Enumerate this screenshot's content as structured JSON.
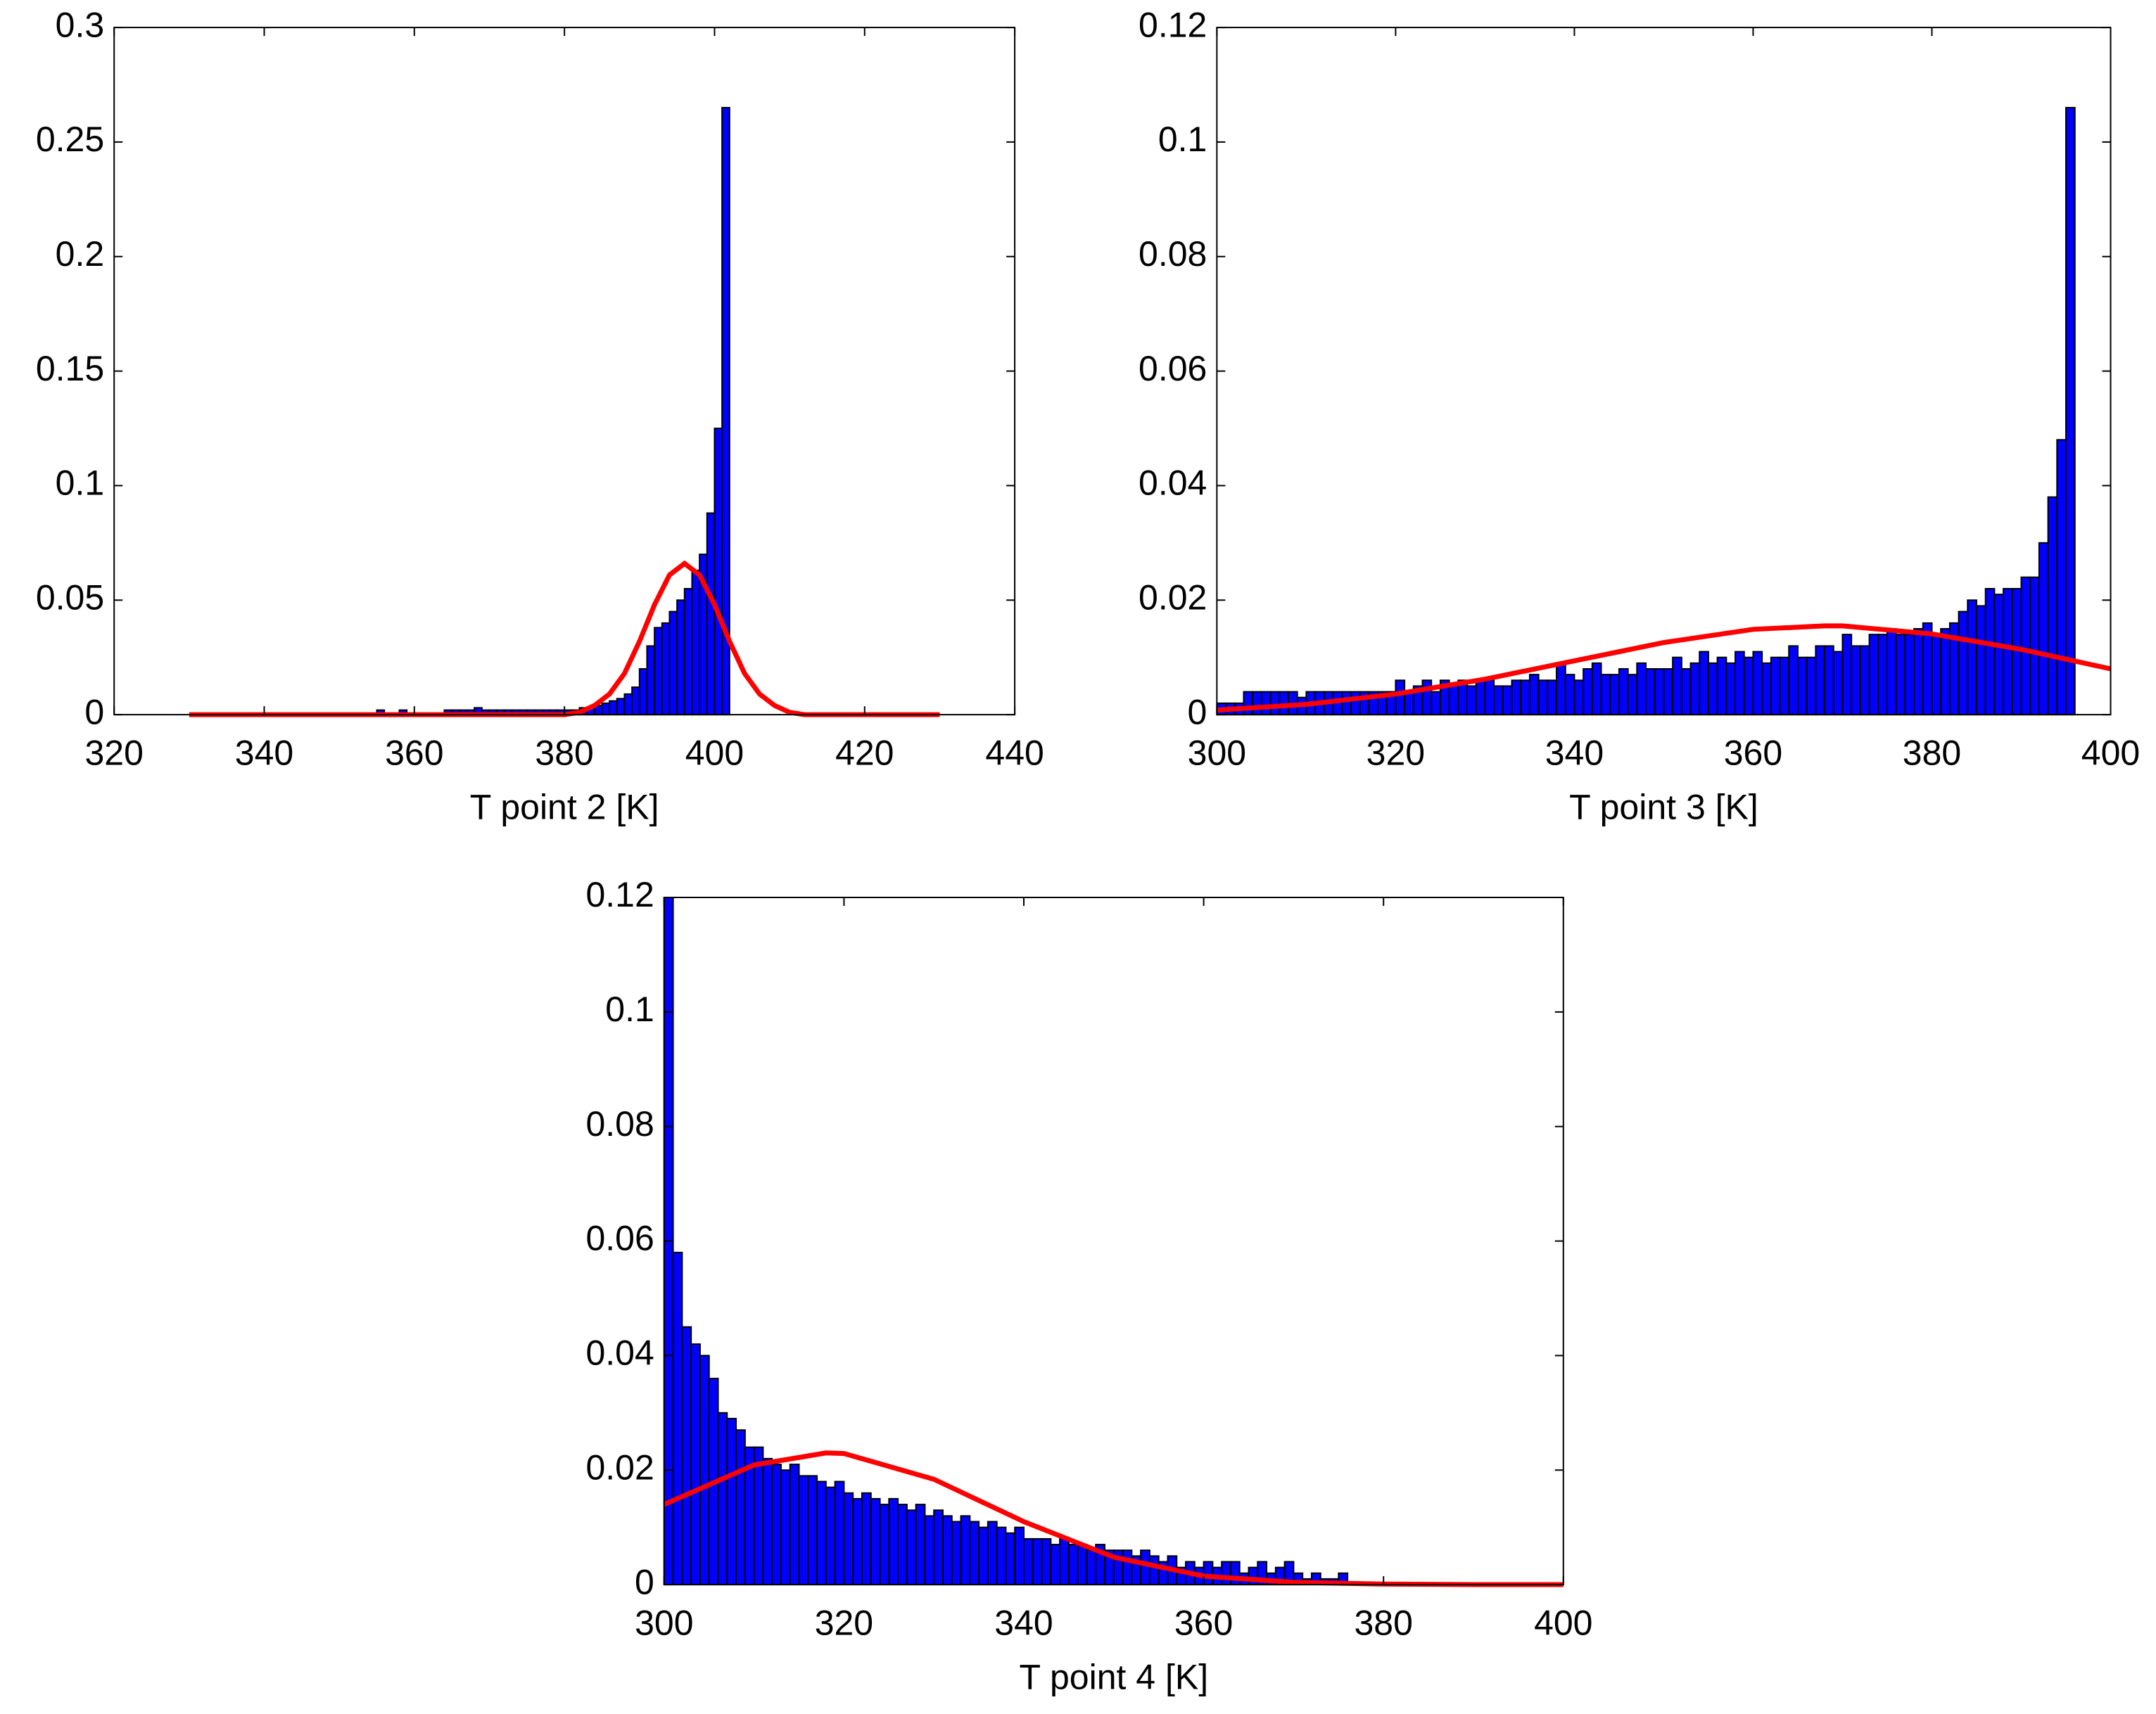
{
  "chart_data": [
    {
      "type": "histogram",
      "x_label": "T point 2 [K]",
      "color": "#0000ff",
      "edgecolor": "#000000",
      "bins": [
        355,
        356,
        357,
        358,
        359,
        360,
        361,
        362,
        363,
        364,
        365,
        366,
        367,
        368,
        369,
        370,
        371,
        372,
        373,
        374,
        375,
        376,
        377,
        378,
        379,
        380,
        381,
        382,
        383,
        384,
        385,
        386,
        387,
        388,
        389,
        390,
        391,
        392,
        393,
        394,
        395,
        396,
        397,
        398,
        399,
        400,
        401,
        402
      ],
      "values": [
        0.002,
        0,
        0,
        0.002,
        0,
        0,
        0,
        0,
        0,
        0.002,
        0.002,
        0.002,
        0.002,
        0.003,
        0.002,
        0.002,
        0.002,
        0.002,
        0.002,
        0.002,
        0.002,
        0.002,
        0.002,
        0.002,
        0.002,
        0.002,
        0.002,
        0.003,
        0.003,
        0.004,
        0.005,
        0.006,
        0.007,
        0.009,
        0.012,
        0.02,
        0.03,
        0.038,
        0.04,
        0.045,
        0.05,
        0.055,
        0.063,
        0.07,
        0.088,
        0.125,
        0.265
      ],
      "fit": {
        "color": "#ff0000",
        "x": [
          330,
          380,
          382,
          384,
          386,
          388,
          390,
          392,
          394,
          396,
          398,
          400,
          402,
          404,
          406,
          408,
          410,
          412,
          430
        ],
        "values": [
          0,
          0,
          0.001,
          0.004,
          0.009,
          0.018,
          0.032,
          0.048,
          0.061,
          0.066,
          0.061,
          0.048,
          0.032,
          0.018,
          0.009,
          0.004,
          0.001,
          0,
          0
        ]
      },
      "xlim": [
        320,
        440
      ],
      "ylim": [
        0,
        0.3
      ],
      "xticks": [
        320,
        340,
        360,
        380,
        400,
        420,
        440
      ],
      "yticks": [
        0,
        0.05,
        0.1,
        0.15,
        0.2,
        0.25,
        0.3
      ]
    },
    {
      "type": "histogram",
      "x_label": "T point 3 [K]",
      "color": "#0000ff",
      "edgecolor": "#000000",
      "bins": [
        300,
        301,
        302,
        303,
        304,
        305,
        306,
        307,
        308,
        309,
        310,
        311,
        312,
        313,
        314,
        315,
        316,
        317,
        318,
        319,
        320,
        321,
        322,
        323,
        324,
        325,
        326,
        327,
        328,
        329,
        330,
        331,
        332,
        333,
        334,
        335,
        336,
        337,
        338,
        339,
        340,
        341,
        342,
        343,
        344,
        345,
        346,
        347,
        348,
        349,
        350,
        351,
        352,
        353,
        354,
        355,
        356,
        357,
        358,
        359,
        360,
        361,
        362,
        363,
        364,
        365,
        366,
        367,
        368,
        369,
        370,
        371,
        372,
        373,
        374,
        375,
        376,
        377,
        378,
        379,
        380,
        381,
        382,
        383,
        384,
        385,
        386,
        387,
        388,
        389,
        390,
        391,
        392,
        393,
        394,
        395,
        396
      ],
      "values": [
        0.002,
        0.002,
        0.002,
        0.004,
        0.004,
        0.004,
        0.004,
        0.004,
        0.004,
        0.003,
        0.004,
        0.004,
        0.004,
        0.004,
        0.004,
        0.004,
        0.004,
        0.004,
        0.004,
        0.004,
        0.006,
        0.004,
        0.005,
        0.006,
        0.004,
        0.006,
        0.005,
        0.006,
        0.005,
        0.006,
        0.006,
        0.005,
        0.005,
        0.006,
        0.006,
        0.007,
        0.006,
        0.006,
        0.009,
        0.007,
        0.006,
        0.008,
        0.009,
        0.007,
        0.007,
        0.008,
        0.007,
        0.009,
        0.008,
        0.008,
        0.008,
        0.01,
        0.008,
        0.009,
        0.011,
        0.009,
        0.01,
        0.009,
        0.011,
        0.01,
        0.011,
        0.009,
        0.01,
        0.01,
        0.012,
        0.01,
        0.01,
        0.012,
        0.012,
        0.011,
        0.014,
        0.012,
        0.012,
        0.014,
        0.014,
        0.015,
        0.014,
        0.014,
        0.015,
        0.016,
        0.014,
        0.015,
        0.016,
        0.018,
        0.02,
        0.019,
        0.022,
        0.021,
        0.022,
        0.022,
        0.024,
        0.024,
        0.03,
        0.038,
        0.048,
        0.106
      ],
      "fit": {
        "color": "#ff0000",
        "x": [
          300,
          310,
          320,
          330,
          340,
          350,
          360,
          368,
          370,
          380,
          390,
          400
        ],
        "values": [
          0.0008,
          0.0018,
          0.0036,
          0.0062,
          0.0094,
          0.0126,
          0.0149,
          0.0155,
          0.0155,
          0.0141,
          0.0114,
          0.008
        ]
      },
      "xlim": [
        300,
        400
      ],
      "ylim": [
        0,
        0.12
      ],
      "xticks": [
        300,
        320,
        340,
        360,
        380,
        400
      ],
      "yticks": [
        0,
        0.02,
        0.04,
        0.06,
        0.08,
        0.1,
        0.12
      ]
    },
    {
      "type": "histogram",
      "x_label": "T point 4 [K]",
      "color": "#0000ff",
      "edgecolor": "#000000",
      "bins": [
        300,
        301,
        302,
        303,
        304,
        305,
        306,
        307,
        308,
        309,
        310,
        311,
        312,
        313,
        314,
        315,
        316,
        317,
        318,
        319,
        320,
        321,
        322,
        323,
        324,
        325,
        326,
        327,
        328,
        329,
        330,
        331,
        332,
        333,
        334,
        335,
        336,
        337,
        338,
        339,
        340,
        341,
        342,
        343,
        344,
        345,
        346,
        347,
        348,
        349,
        350,
        351,
        352,
        353,
        354,
        355,
        356,
        357,
        358,
        359,
        360,
        361,
        362,
        363,
        364,
        365,
        366,
        367,
        368,
        369,
        370,
        371,
        372,
        373,
        374,
        375,
        376
      ],
      "values": [
        0.12,
        0.058,
        0.045,
        0.042,
        0.04,
        0.036,
        0.03,
        0.029,
        0.027,
        0.024,
        0.024,
        0.022,
        0.021,
        0.02,
        0.021,
        0.019,
        0.019,
        0.018,
        0.017,
        0.018,
        0.016,
        0.015,
        0.016,
        0.015,
        0.014,
        0.015,
        0.014,
        0.013,
        0.014,
        0.012,
        0.013,
        0.012,
        0.011,
        0.012,
        0.011,
        0.01,
        0.011,
        0.01,
        0.009,
        0.01,
        0.008,
        0.008,
        0.008,
        0.007,
        0.008,
        0.007,
        0.007,
        0.006,
        0.007,
        0.006,
        0.006,
        0.006,
        0.005,
        0.006,
        0.005,
        0.004,
        0.005,
        0.003,
        0.004,
        0.003,
        0.004,
        0.003,
        0.004,
        0.004,
        0.002,
        0.003,
        0.004,
        0.002,
        0.003,
        0.004,
        0.002,
        0.001,
        0.002,
        0.001,
        0.001,
        0.002
      ],
      "fit": {
        "color": "#ff0000",
        "x": [
          300,
          310,
          318,
          320,
          330,
          340,
          350,
          360,
          370,
          380,
          390,
          400
        ],
        "values": [
          0.014,
          0.0209,
          0.023,
          0.0229,
          0.0184,
          0.011,
          0.0048,
          0.0015,
          0.0004,
          0.0001,
          0,
          0
        ]
      },
      "xlim": [
        300,
        400
      ],
      "ylim": [
        0,
        0.12
      ],
      "xticks": [
        300,
        320,
        340,
        360,
        380,
        400
      ],
      "yticks": [
        0,
        0.02,
        0.04,
        0.06,
        0.08,
        0.1,
        0.12
      ]
    }
  ]
}
